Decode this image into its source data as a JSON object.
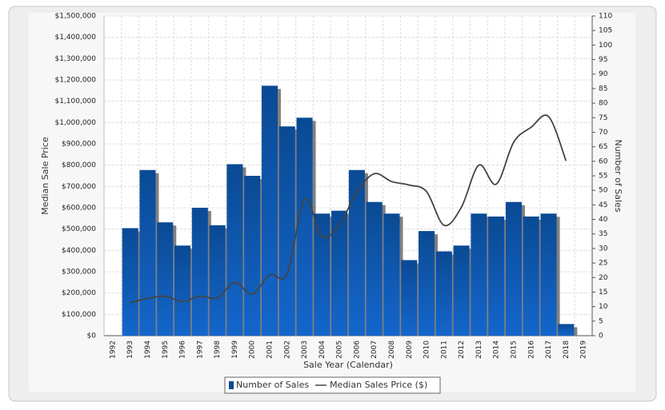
{
  "chart_data": {
    "type": "bar",
    "xlabel": "Sale Year (Calendar)",
    "ylabel": "Median Sale Price",
    "y2label": "Number of Sales",
    "categories": [
      "1992",
      "1993",
      "1994",
      "1995",
      "1996",
      "1997",
      "1998",
      "1999",
      "2000",
      "2001",
      "2002",
      "2003",
      "2004",
      "2005",
      "2006",
      "2007",
      "2008",
      "2009",
      "2010",
      "2011",
      "2012",
      "2013",
      "2014",
      "2015",
      "2016",
      "2017",
      "2018",
      "2019"
    ],
    "series": [
      {
        "name": "Number of Sales",
        "type": "bar",
        "axis": "y2",
        "color": "#0a4a94",
        "values": [
          null,
          37,
          57,
          39,
          31,
          44,
          38,
          59,
          55,
          86,
          72,
          75,
          42,
          43,
          57,
          46,
          42,
          26,
          36,
          29,
          31,
          42,
          41,
          46,
          41,
          42,
          4,
          null
        ]
      },
      {
        "name": "Median Sales Price ($)",
        "type": "line",
        "color": "#444444",
        "values": [
          null,
          155000,
          175000,
          185000,
          160000,
          185000,
          178000,
          250000,
          195000,
          285000,
          290000,
          640000,
          465000,
          520000,
          675000,
          760000,
          723000,
          707000,
          676000,
          518000,
          603000,
          800000,
          711000,
          908000,
          978000,
          1028000,
          820000,
          null
        ]
      }
    ],
    "ylim": [
      0,
      1500000
    ],
    "yticks": [
      {
        "value": 0,
        "label": "$0"
      },
      {
        "value": 100000,
        "label": "$100,000"
      },
      {
        "value": 200000,
        "label": "$200,000"
      },
      {
        "value": 300000,
        "label": "$300,000"
      },
      {
        "value": 400000,
        "label": "$400,000"
      },
      {
        "value": 500000,
        "label": "$500,000"
      },
      {
        "value": 600000,
        "label": "$600,000"
      },
      {
        "value": 700000,
        "label": "$700,000"
      },
      {
        "value": 800000,
        "label": "$800,000"
      },
      {
        "value": 900000,
        "label": "$900,000"
      },
      {
        "value": 1000000,
        "label": "$1,000,000"
      },
      {
        "value": 1100000,
        "label": "$1,100,000"
      },
      {
        "value": 1200000,
        "label": "$1,200,000"
      },
      {
        "value": 1300000,
        "label": "$1,300,000"
      },
      {
        "value": 1400000,
        "label": "$1,400,000"
      },
      {
        "value": 1500000,
        "label": "$1,500,000"
      }
    ],
    "y2lim": [
      0,
      110
    ],
    "y2ticks": [
      0,
      5,
      10,
      15,
      20,
      25,
      30,
      35,
      40,
      45,
      50,
      55,
      60,
      65,
      70,
      75,
      80,
      85,
      90,
      95,
      100,
      105,
      110
    ],
    "grid": true,
    "legend": "bottom"
  }
}
